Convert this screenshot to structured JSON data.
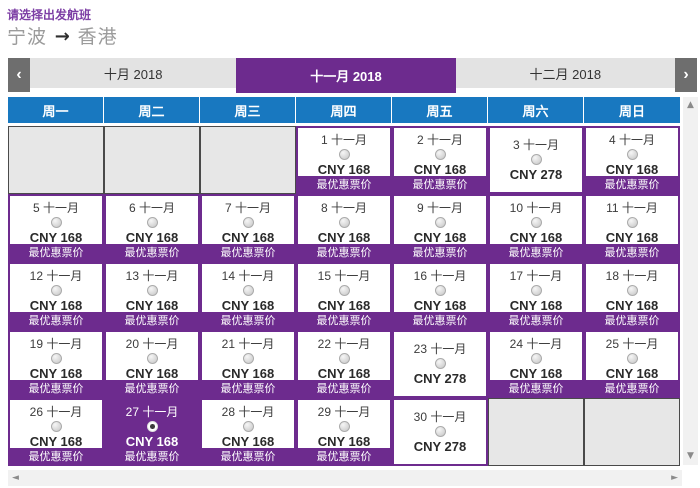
{
  "page": {
    "title": "请选择出发航班"
  },
  "route": {
    "from": "宁波",
    "to": "香港"
  },
  "tabs": {
    "items": [
      {
        "label": "十月 2018",
        "selected": false
      },
      {
        "label": "十一月 2018",
        "selected": true
      },
      {
        "label": "十二月 2018",
        "selected": false
      }
    ]
  },
  "weekdays": [
    "周一",
    "周二",
    "周三",
    "周四",
    "周五",
    "周六",
    "周日"
  ],
  "calendar": {
    "month": "十一月",
    "badge_label": "最优惠票价",
    "cells": [
      {
        "type": "empty"
      },
      {
        "type": "empty"
      },
      {
        "type": "empty"
      },
      {
        "type": "fare",
        "day": 1,
        "price": "CNY 168",
        "badge": true,
        "selected": false
      },
      {
        "type": "fare",
        "day": 2,
        "price": "CNY 168",
        "badge": true,
        "selected": false
      },
      {
        "type": "fare",
        "day": 3,
        "price": "CNY 278",
        "badge": false,
        "selected": false
      },
      {
        "type": "fare",
        "day": 4,
        "price": "CNY 168",
        "badge": true,
        "selected": false
      },
      {
        "type": "fare",
        "day": 5,
        "price": "CNY 168",
        "badge": true,
        "selected": false
      },
      {
        "type": "fare",
        "day": 6,
        "price": "CNY 168",
        "badge": true,
        "selected": false
      },
      {
        "type": "fare",
        "day": 7,
        "price": "CNY 168",
        "badge": true,
        "selected": false
      },
      {
        "type": "fare",
        "day": 8,
        "price": "CNY 168",
        "badge": true,
        "selected": false
      },
      {
        "type": "fare",
        "day": 9,
        "price": "CNY 168",
        "badge": true,
        "selected": false
      },
      {
        "type": "fare",
        "day": 10,
        "price": "CNY 168",
        "badge": true,
        "selected": false
      },
      {
        "type": "fare",
        "day": 11,
        "price": "CNY 168",
        "badge": true,
        "selected": false
      },
      {
        "type": "fare",
        "day": 12,
        "price": "CNY 168",
        "badge": true,
        "selected": false
      },
      {
        "type": "fare",
        "day": 13,
        "price": "CNY 168",
        "badge": true,
        "selected": false
      },
      {
        "type": "fare",
        "day": 14,
        "price": "CNY 168",
        "badge": true,
        "selected": false
      },
      {
        "type": "fare",
        "day": 15,
        "price": "CNY 168",
        "badge": true,
        "selected": false
      },
      {
        "type": "fare",
        "day": 16,
        "price": "CNY 168",
        "badge": true,
        "selected": false
      },
      {
        "type": "fare",
        "day": 17,
        "price": "CNY 168",
        "badge": true,
        "selected": false
      },
      {
        "type": "fare",
        "day": 18,
        "price": "CNY 168",
        "badge": true,
        "selected": false
      },
      {
        "type": "fare",
        "day": 19,
        "price": "CNY 168",
        "badge": true,
        "selected": false
      },
      {
        "type": "fare",
        "day": 20,
        "price": "CNY 168",
        "badge": true,
        "selected": false
      },
      {
        "type": "fare",
        "day": 21,
        "price": "CNY 168",
        "badge": true,
        "selected": false
      },
      {
        "type": "fare",
        "day": 22,
        "price": "CNY 168",
        "badge": true,
        "selected": false
      },
      {
        "type": "fare",
        "day": 23,
        "price": "CNY 278",
        "badge": false,
        "selected": false
      },
      {
        "type": "fare",
        "day": 24,
        "price": "CNY 168",
        "badge": true,
        "selected": false
      },
      {
        "type": "fare",
        "day": 25,
        "price": "CNY 168",
        "badge": true,
        "selected": false
      },
      {
        "type": "fare",
        "day": 26,
        "price": "CNY 168",
        "badge": true,
        "selected": false
      },
      {
        "type": "fare",
        "day": 27,
        "price": "CNY 168",
        "badge": true,
        "selected": true
      },
      {
        "type": "fare",
        "day": 28,
        "price": "CNY 168",
        "badge": true,
        "selected": false
      },
      {
        "type": "fare",
        "day": 29,
        "price": "CNY 168",
        "badge": true,
        "selected": false
      },
      {
        "type": "fare",
        "day": 30,
        "price": "CNY 278",
        "badge": false,
        "selected": false
      },
      {
        "type": "empty"
      },
      {
        "type": "empty"
      }
    ]
  },
  "icons": {
    "prev_month": "‹",
    "next_month": "›",
    "route_arrow": "→",
    "scroll_up": "▲",
    "scroll_down": "▼",
    "scroll_left": "◄",
    "scroll_right": "►"
  },
  "colors": {
    "purple": "#6d2b8e",
    "title_purple": "#7d3fa5",
    "blue": "#1878c0"
  }
}
